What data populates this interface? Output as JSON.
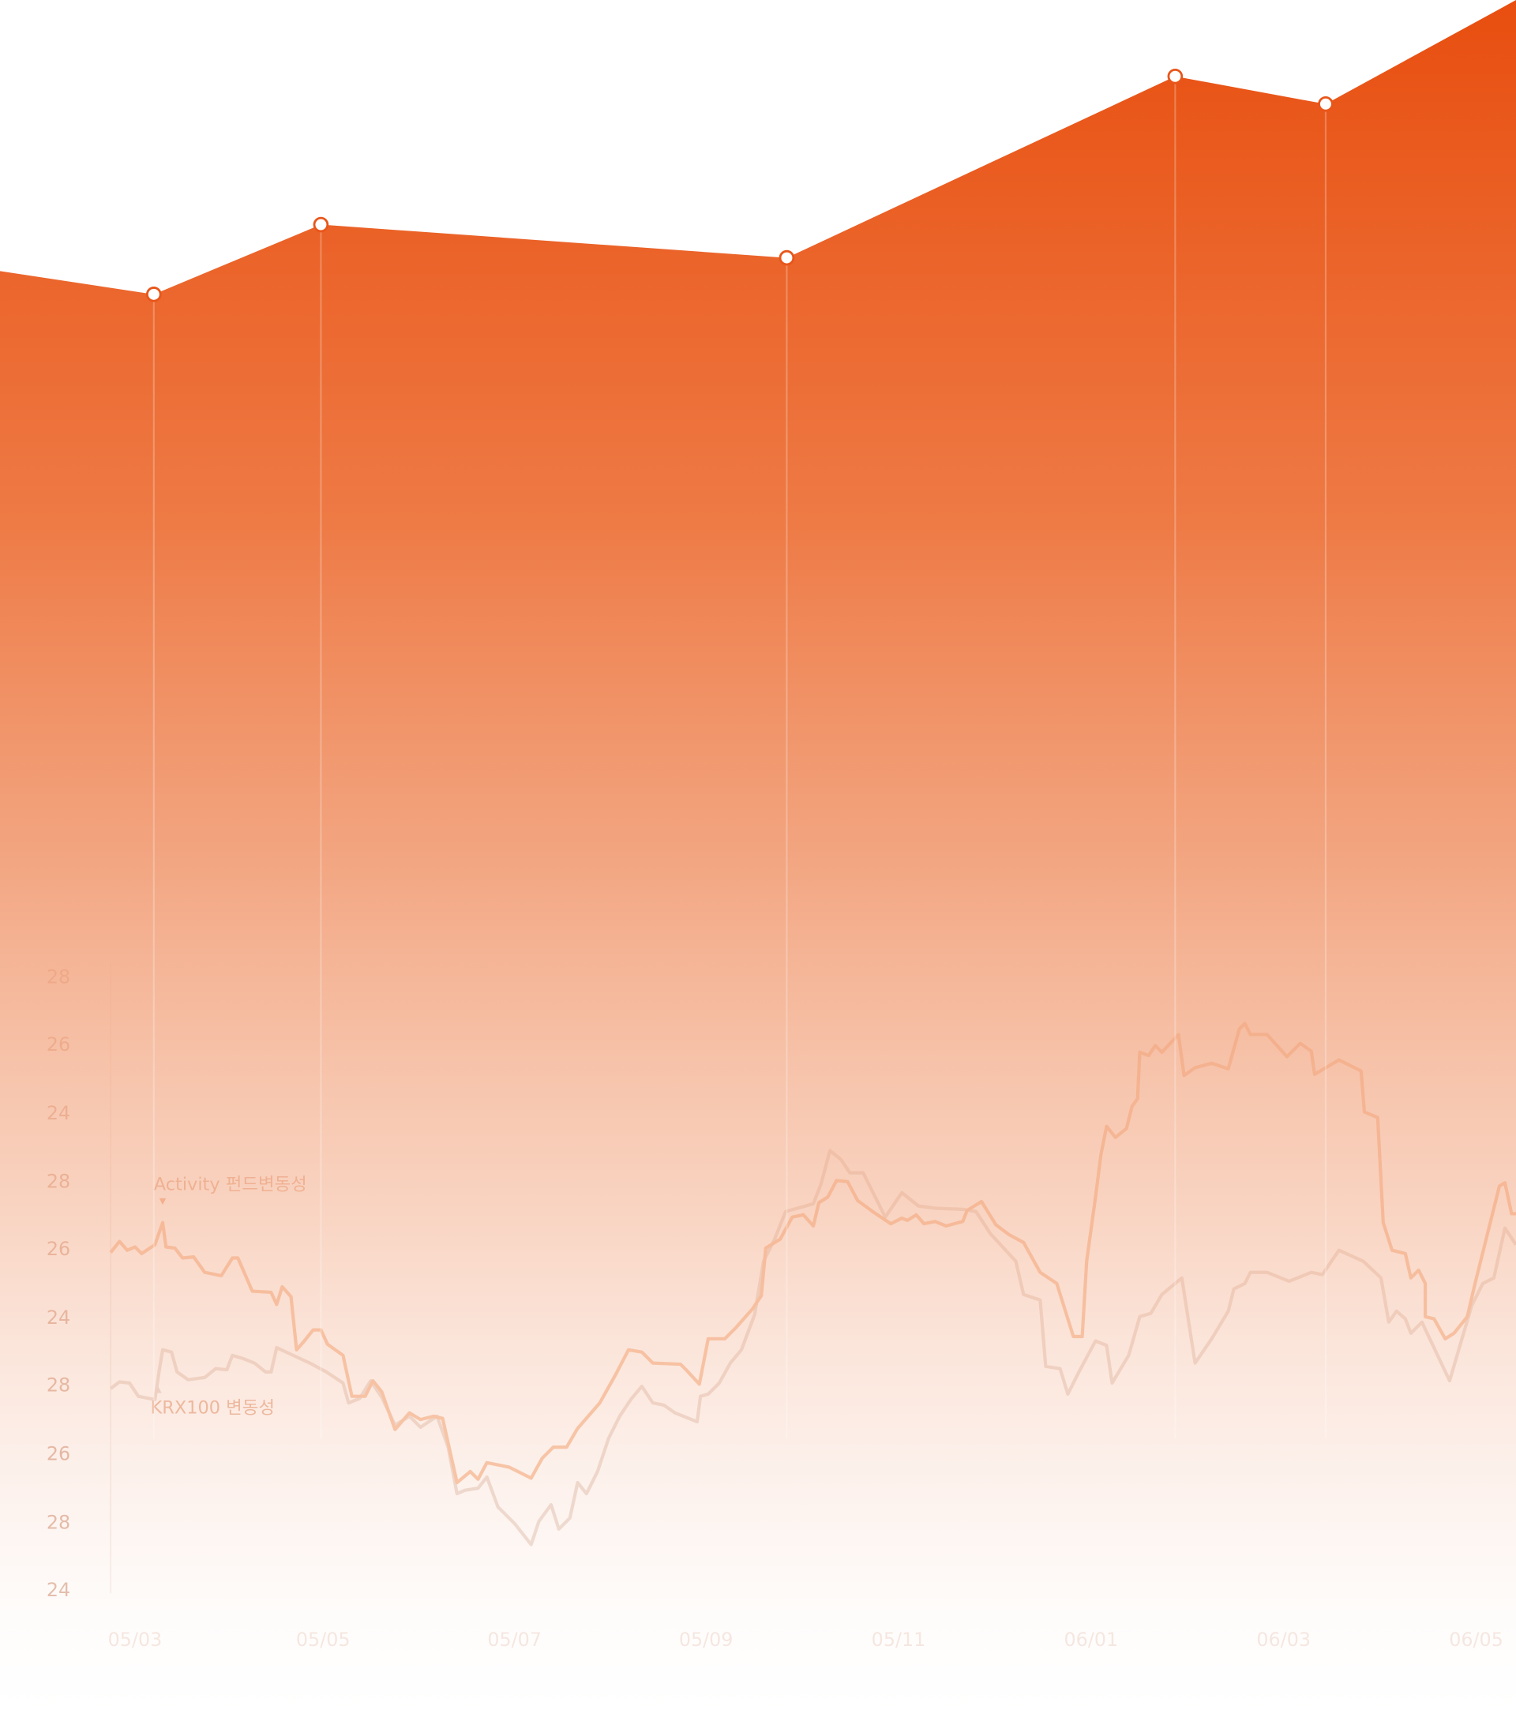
{
  "y_axis_labels": [
    "28",
    "26",
    "24",
    "28",
    "26",
    "24",
    "28",
    "26",
    "28",
    "24"
  ],
  "x_axis_labels": [
    "05/03",
    "05/05",
    "05/07",
    "05/09",
    "05/11",
    "06/01",
    "06/03",
    "06/05"
  ],
  "legend": [
    "Activity 펀드변동성",
    "KRX100 변동성"
  ]
}
